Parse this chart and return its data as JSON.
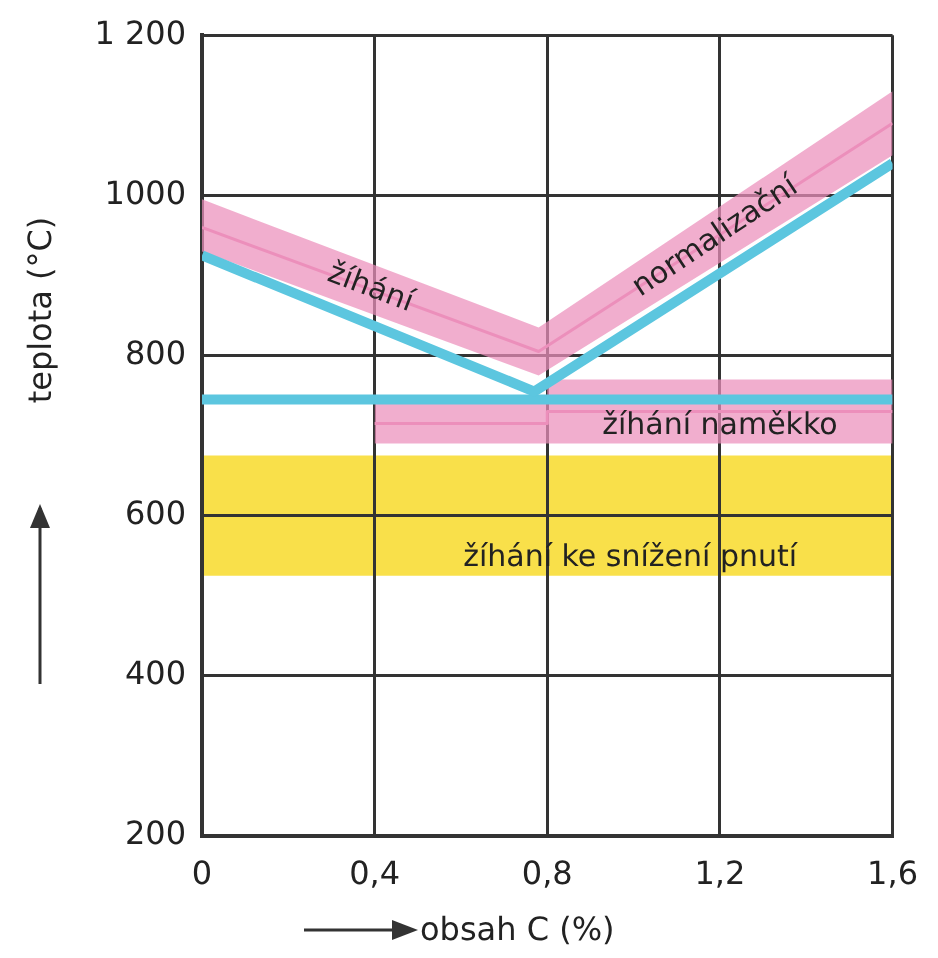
{
  "chart_data": {
    "type": "line",
    "xlabel": "obsah C (%)",
    "ylabel": "teplota (°C)",
    "xlim": [
      0,
      1.6
    ],
    "ylim": [
      200,
      1200
    ],
    "xticks": [
      0,
      {
        "value": 0.4,
        "label": "0,4"
      },
      {
        "value": 0.8,
        "label": "0,8"
      },
      {
        "value": 1.2,
        "label": "1,2"
      },
      {
        "value": 1.6,
        "label": "1,6"
      }
    ],
    "yticks": [
      200,
      400,
      600,
      800,
      1000,
      {
        "value": 1200,
        "label": "1 200"
      }
    ],
    "grid": true,
    "legend": false,
    "marker": "none",
    "series": [
      {
        "name": "žíhání normalizační",
        "color": "#ec8fbb",
        "x": [
          0,
          0.78,
          1.6
        ],
        "values": [
          960,
          805,
          1090
        ],
        "lower": [
          930,
          775,
          1050
        ],
        "upper": [
          995,
          835,
          1130
        ]
      },
      {
        "name": "žíhání naměkko",
        "color": "#ec8fbb",
        "x": [
          0.4,
          0.8,
          0.8,
          1.6
        ],
        "values": [
          715,
          715,
          730,
          730
        ],
        "lower": [
          690,
          690,
          690,
          690
        ],
        "upper": [
          740,
          740,
          770,
          770
        ]
      },
      {
        "type": "line",
        "color": "#5cc6df",
        "x": [
          0,
          0.77,
          1.6
        ],
        "values": [
          925,
          755,
          1040
        ]
      },
      {
        "type": "line",
        "color": "#5cc6df",
        "x": [
          0,
          1.6
        ],
        "values": [
          745,
          745
        ]
      }
    ],
    "bands": [
      {
        "axis": "y",
        "from": 525,
        "to": 675,
        "color": "#f9e04a",
        "label": "žíhání ke snížení pnutí"
      }
    ]
  }
}
